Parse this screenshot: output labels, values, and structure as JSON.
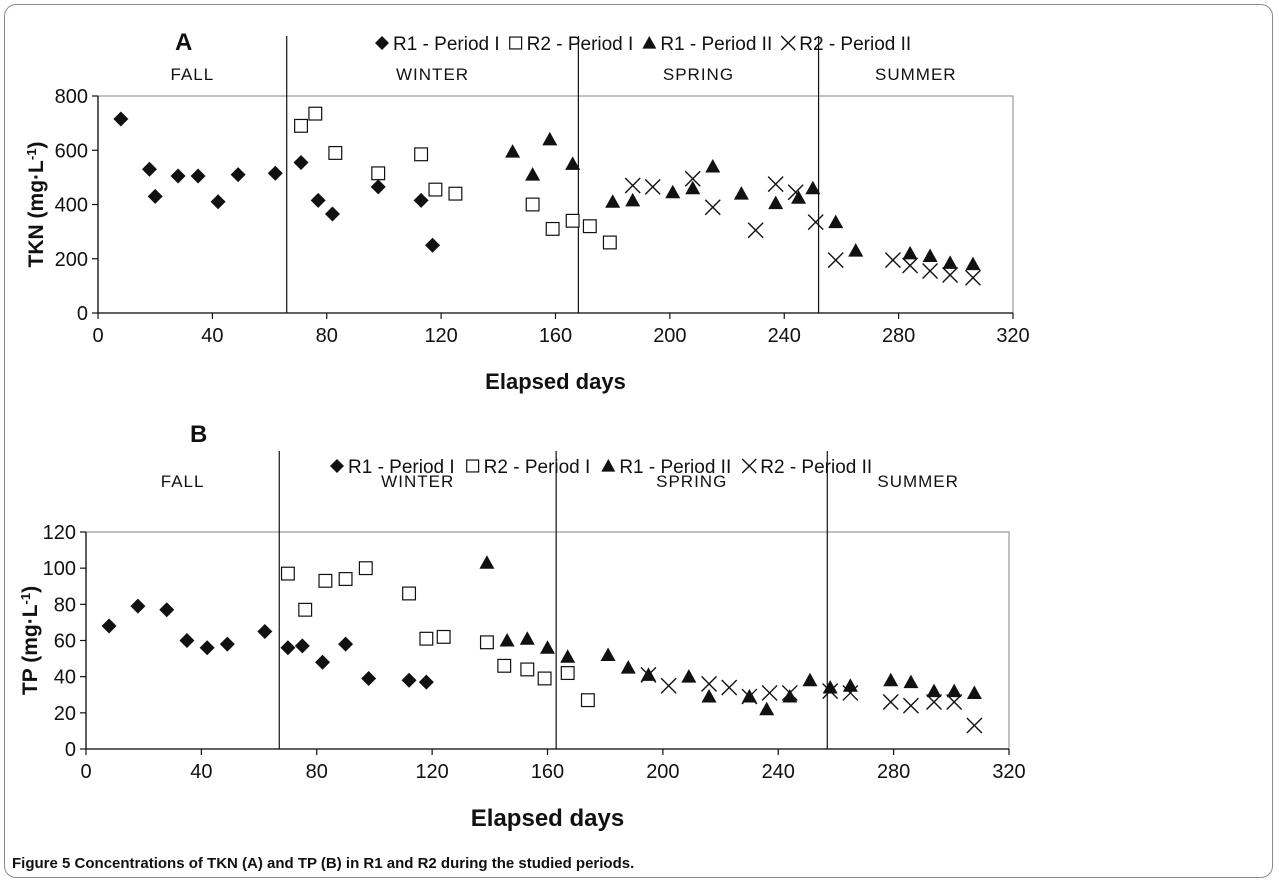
{
  "caption": {
    "label": "Figure 5",
    "text": "Concentrations of TKN (A) and TP (B) in R1 and R2 during the studied periods."
  },
  "chart_data": [
    {
      "type": "scatter",
      "panel": "A",
      "xlabel": "Elapsed days",
      "ylabel": "TKN (mg·L",
      "ylabel_sup": "-1",
      "ylabel_end": ")",
      "xlim": [
        0,
        320
      ],
      "ylim": [
        0,
        800
      ],
      "xticks": [
        0,
        40,
        80,
        120,
        160,
        200,
        240,
        280,
        320
      ],
      "yticks": [
        0,
        200,
        400,
        600,
        800
      ],
      "legend_position": "top",
      "seasons": [
        {
          "name": "FALL",
          "start": 0,
          "end": 66
        },
        {
          "name": "WINTER",
          "start": 66,
          "end": 168
        },
        {
          "name": "SPRING",
          "start": 168,
          "end": 252
        },
        {
          "name": "SUMMER",
          "start": 252,
          "end": 320
        }
      ],
      "series": [
        {
          "name": "R1 - Period I",
          "marker": "diamond",
          "points": [
            [
              8,
              715
            ],
            [
              18,
              530
            ],
            [
              20,
              430
            ],
            [
              28,
              505
            ],
            [
              35,
              505
            ],
            [
              42,
              410
            ],
            [
              49,
              510
            ],
            [
              62,
              515
            ],
            [
              71,
              555
            ],
            [
              77,
              415
            ],
            [
              82,
              365
            ],
            [
              98,
              465
            ],
            [
              113,
              415
            ],
            [
              117,
              250
            ]
          ]
        },
        {
          "name": "R2 - Period I",
          "marker": "square",
          "points": [
            [
              71,
              690
            ],
            [
              76,
              735
            ],
            [
              83,
              590
            ],
            [
              98,
              515
            ],
            [
              113,
              585
            ],
            [
              118,
              455
            ],
            [
              125,
              440
            ],
            [
              152,
              400
            ],
            [
              159,
              310
            ],
            [
              166,
              340
            ],
            [
              172,
              320
            ],
            [
              179,
              260
            ]
          ]
        },
        {
          "name": "R1 - Period II",
          "marker": "triangle",
          "points": [
            [
              145,
              595
            ],
            [
              152,
              510
            ],
            [
              158,
              640
            ],
            [
              166,
              550
            ],
            [
              180,
              410
            ],
            [
              187,
              415
            ],
            [
              201,
              445
            ],
            [
              208,
              460
            ],
            [
              215,
              540
            ],
            [
              225,
              440
            ],
            [
              237,
              405
            ],
            [
              245,
              425
            ],
            [
              250,
              460
            ],
            [
              258,
              335
            ],
            [
              265,
              230
            ],
            [
              284,
              220
            ],
            [
              291,
              210
            ],
            [
              298,
              185
            ],
            [
              306,
              180
            ]
          ]
        },
        {
          "name": "R2 - Period II",
          "marker": "x",
          "points": [
            [
              187,
              470
            ],
            [
              194,
              465
            ],
            [
              208,
              495
            ],
            [
              215,
              390
            ],
            [
              230,
              305
            ],
            [
              237,
              475
            ],
            [
              244,
              445
            ],
            [
              251,
              335
            ],
            [
              258,
              195
            ],
            [
              278,
              195
            ],
            [
              284,
              175
            ],
            [
              291,
              155
            ],
            [
              298,
              140
            ],
            [
              306,
              130
            ]
          ]
        }
      ]
    },
    {
      "type": "scatter",
      "panel": "B",
      "xlabel": "Elapsed days",
      "ylabel": "TP (mg·L",
      "ylabel_sup": "-1",
      "ylabel_end": ")",
      "xlim": [
        0,
        320
      ],
      "ylim": [
        0,
        120
      ],
      "xticks": [
        0,
        40,
        80,
        120,
        160,
        200,
        240,
        280,
        320
      ],
      "yticks": [
        0,
        20,
        40,
        60,
        80,
        100,
        120
      ],
      "legend_position": "top",
      "seasons": [
        {
          "name": "FALL",
          "start": 0,
          "end": 67
        },
        {
          "name": "WINTER",
          "start": 67,
          "end": 163
        },
        {
          "name": "SPRING",
          "start": 163,
          "end": 257
        },
        {
          "name": "SUMMER",
          "start": 257,
          "end": 320
        }
      ],
      "series": [
        {
          "name": "R1 - Period I",
          "marker": "diamond",
          "points": [
            [
              8,
              68
            ],
            [
              18,
              79
            ],
            [
              28,
              77
            ],
            [
              35,
              60
            ],
            [
              42,
              56
            ],
            [
              49,
              58
            ],
            [
              62,
              65
            ],
            [
              70,
              56
            ],
            [
              75,
              57
            ],
            [
              82,
              48
            ],
            [
              90,
              58
            ],
            [
              98,
              39
            ],
            [
              112,
              38
            ],
            [
              118,
              37
            ]
          ]
        },
        {
          "name": "R2 - Period I",
          "marker": "square",
          "points": [
            [
              70,
              97
            ],
            [
              76,
              77
            ],
            [
              83,
              93
            ],
            [
              90,
              94
            ],
            [
              97,
              100
            ],
            [
              112,
              86
            ],
            [
              118,
              61
            ],
            [
              124,
              62
            ],
            [
              139,
              59
            ],
            [
              145,
              46
            ],
            [
              153,
              44
            ],
            [
              159,
              39
            ],
            [
              167,
              42
            ],
            [
              174,
              27
            ]
          ]
        },
        {
          "name": "R1 - Period II",
          "marker": "triangle",
          "points": [
            [
              139,
              103
            ],
            [
              146,
              60
            ],
            [
              153,
              61
            ],
            [
              160,
              56
            ],
            [
              167,
              51
            ],
            [
              181,
              52
            ],
            [
              188,
              45
            ],
            [
              195,
              41
            ],
            [
              209,
              40
            ],
            [
              216,
              29
            ],
            [
              230,
              29
            ],
            [
              236,
              22
            ],
            [
              244,
              29
            ],
            [
              251,
              38
            ],
            [
              258,
              34
            ],
            [
              265,
              35
            ],
            [
              279,
              38
            ],
            [
              286,
              37
            ],
            [
              294,
              32
            ],
            [
              301,
              32
            ],
            [
              308,
              31
            ]
          ]
        },
        {
          "name": "R2 - Period II",
          "marker": "x",
          "points": [
            [
              195,
              41
            ],
            [
              202,
              35
            ],
            [
              216,
              36
            ],
            [
              223,
              34
            ],
            [
              230,
              29
            ],
            [
              237,
              31
            ],
            [
              244,
              31
            ],
            [
              258,
              32
            ],
            [
              265,
              31
            ],
            [
              279,
              26
            ],
            [
              286,
              24
            ],
            [
              294,
              26
            ],
            [
              301,
              26
            ],
            [
              308,
              13
            ]
          ]
        }
      ]
    }
  ]
}
